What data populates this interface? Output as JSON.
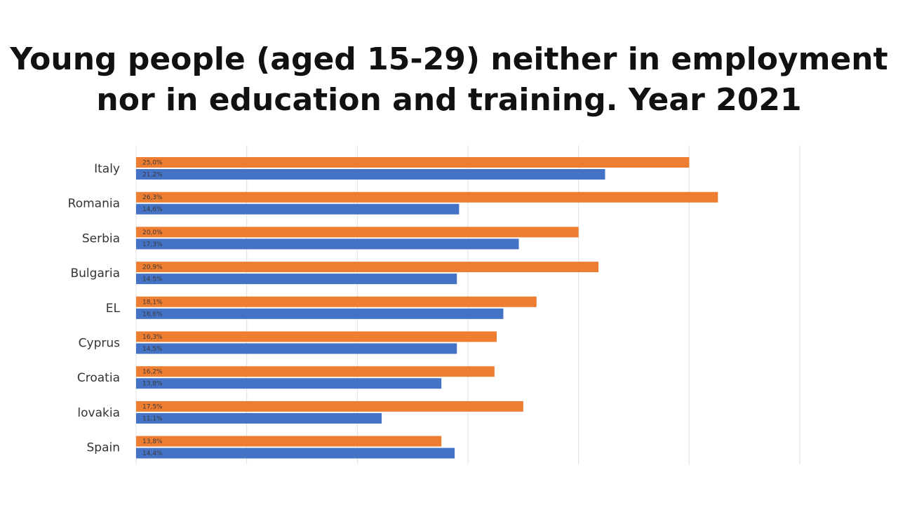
{
  "title_lines": [
    "Young people (aged 15-29) neither in employment",
    "nor in education and training. Year 2021"
  ],
  "chart_data": {
    "type": "bar",
    "orientation": "horizontal",
    "categories": [
      "Italy",
      "Romania",
      "Serbia",
      "Bulgaria",
      "EL",
      "Cyprus",
      "Croatia",
      "lovakia",
      "Spain"
    ],
    "series": [
      {
        "color": "#ED7D31",
        "values": [
          25.0,
          26.3,
          20.0,
          20.9,
          18.1,
          16.3,
          16.2,
          17.5,
          13.8
        ],
        "labels": [
          "25,0%",
          "26,3%",
          "20,0%",
          "20,9%",
          "18,1%",
          "16,3%",
          "16,2%",
          "17,5%",
          "13,8%"
        ]
      },
      {
        "color": "#4472C4",
        "values": [
          21.2,
          14.6,
          17.3,
          14.5,
          16.6,
          14.5,
          13.8,
          11.1,
          14.4
        ],
        "labels": [
          "21,2%",
          "14,6%",
          "17,3%",
          "14,5%",
          "16,6%",
          "14,5%",
          "13,8%",
          "11,1%",
          "14,4%"
        ]
      }
    ],
    "xlim": [
      0,
      30
    ],
    "grid": true,
    "legend": "none",
    "xlabel": "",
    "ylabel": ""
  }
}
